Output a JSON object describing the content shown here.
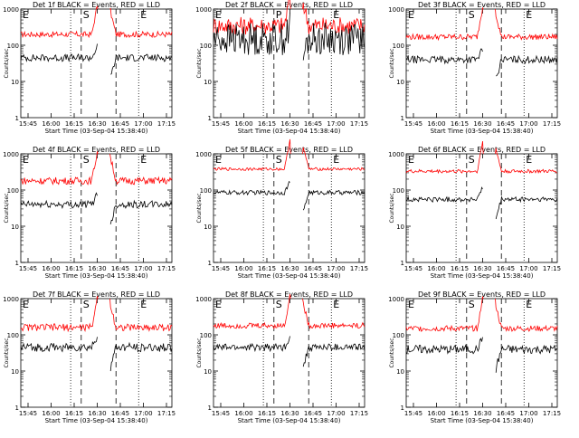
{
  "chart_data": [
    {
      "type": "line",
      "title": "Det 1f BLACK = Events, RED = LLD",
      "xlabel": "Start Time (03-Sep-04 15:38:40)",
      "ylabel": "Counts/sec",
      "yscale": "log",
      "ylim": [
        1,
        1000
      ],
      "x_ticks": [
        "15:45",
        "16:00",
        "16:15",
        "16:30",
        "16:45",
        "17:00",
        "17:15"
      ],
      "y_ticks": [
        "1",
        "10",
        "100",
        "1000"
      ],
      "markers": [
        {
          "label": "E",
          "style": "dotted"
        },
        {
          "label": "S",
          "style": "dashed"
        },
        {
          "label": "",
          "style": "dashed"
        },
        {
          "label": "E",
          "style": "dotted"
        }
      ],
      "series": [
        {
          "color": "#ff0000",
          "baseline": 200,
          "jitter": 0.08
        },
        {
          "color": "#000000",
          "baseline": 45,
          "jitter": 0.1
        }
      ]
    },
    {
      "type": "line",
      "title": "Det 2f BLACK = Events, RED = LLD",
      "xlabel": "Start Time (03-Sep-04 15:38:40)",
      "ylabel": "Counts/sec",
      "yscale": "log",
      "ylim": [
        1,
        1000
      ],
      "x_ticks": [
        "15:45",
        "16:00",
        "16:15",
        "16:30",
        "16:45",
        "17:00",
        "17:15"
      ],
      "y_ticks": [
        "1",
        "10",
        "100",
        "1000"
      ],
      "markers": [
        {
          "label": "E",
          "style": "dotted"
        },
        {
          "label": "P",
          "style": "dashed"
        },
        {
          "label": "",
          "style": "dashed"
        },
        {
          "label": "E",
          "style": "dotted"
        }
      ],
      "series": [
        {
          "color": "#ff0000",
          "baseline": 350,
          "jitter": 0.25
        },
        {
          "color": "#000000",
          "baseline": 150,
          "jitter": 0.45
        }
      ]
    },
    {
      "type": "line",
      "title": "Det 3f BLACK = Events, RED = LLD",
      "xlabel": "Start Time (03-Sep-04 15:38:40)",
      "ylabel": "Counts/sec",
      "yscale": "log",
      "ylim": [
        1,
        1000
      ],
      "x_ticks": [
        "15:45",
        "16:00",
        "16:15",
        "16:30",
        "16:45",
        "17:00",
        "17:15"
      ],
      "y_ticks": [
        "1",
        "10",
        "100",
        "1000"
      ],
      "markers": [
        {
          "label": "E",
          "style": "dotted"
        },
        {
          "label": "S",
          "style": "dashed"
        },
        {
          "label": "",
          "style": "dashed"
        },
        {
          "label": "E",
          "style": "dotted"
        }
      ],
      "series": [
        {
          "color": "#ff0000",
          "baseline": 170,
          "jitter": 0.08
        },
        {
          "color": "#000000",
          "baseline": 40,
          "jitter": 0.1
        }
      ]
    },
    {
      "type": "line",
      "title": "Det 4f BLACK = Events, RED = LLD",
      "xlabel": "Start Time (03-Sep-04 15:38:40)",
      "ylabel": "Counts/sec",
      "yscale": "log",
      "ylim": [
        1,
        1000
      ],
      "x_ticks": [
        "15:45",
        "16:00",
        "16:15",
        "16:30",
        "16:45",
        "17:00",
        "17:15"
      ],
      "y_ticks": [
        "1",
        "10",
        "100",
        "1000"
      ],
      "markers": [
        {
          "label": "E",
          "style": "dotted"
        },
        {
          "label": "S",
          "style": "dashed"
        },
        {
          "label": "",
          "style": "dashed"
        },
        {
          "label": "E",
          "style": "dotted"
        }
      ],
      "series": [
        {
          "color": "#ff0000",
          "baseline": 180,
          "jitter": 0.1
        },
        {
          "color": "#000000",
          "baseline": 40,
          "jitter": 0.1
        }
      ]
    },
    {
      "type": "line",
      "title": "Det 5f BLACK = Events, RED = LLD",
      "xlabel": "Start Time (03-Sep-04 15:38:40)",
      "ylabel": "Counts/sec",
      "yscale": "log",
      "ylim": [
        1,
        1000
      ],
      "x_ticks": [
        "15:45",
        "16:00",
        "16:15",
        "16:30",
        "16:45",
        "17:00",
        "17:15"
      ],
      "y_ticks": [
        "1",
        "10",
        "100",
        "1000"
      ],
      "markers": [
        {
          "label": "E",
          "style": "dotted"
        },
        {
          "label": "S",
          "style": "dashed"
        },
        {
          "label": "",
          "style": "dashed"
        },
        {
          "label": "E",
          "style": "dotted"
        }
      ],
      "series": [
        {
          "color": "#ff0000",
          "baseline": 380,
          "jitter": 0.04
        },
        {
          "color": "#000000",
          "baseline": 85,
          "jitter": 0.06
        }
      ]
    },
    {
      "type": "line",
      "title": "Det 6f BLACK = Events, RED = LLD",
      "xlabel": "Start Time (03-Sep-04 15:38:40)",
      "ylabel": "Counts/sec",
      "yscale": "log",
      "ylim": [
        1,
        1000
      ],
      "x_ticks": [
        "15:45",
        "16:00",
        "16:15",
        "16:30",
        "16:45",
        "17:00",
        "17:15"
      ],
      "y_ticks": [
        "1",
        "10",
        "100",
        "1000"
      ],
      "markers": [
        {
          "label": "E",
          "style": "dotted"
        },
        {
          "label": "S",
          "style": "dashed"
        },
        {
          "label": "",
          "style": "dashed"
        },
        {
          "label": "E",
          "style": "dotted"
        }
      ],
      "series": [
        {
          "color": "#ff0000",
          "baseline": 330,
          "jitter": 0.05
        },
        {
          "color": "#000000",
          "baseline": 55,
          "jitter": 0.07
        }
      ]
    },
    {
      "type": "line",
      "title": "Det 7f BLACK = Events, RED = LLD",
      "xlabel": "Start Time (03-Sep-04 15:38:40)",
      "ylabel": "Counts/sec",
      "yscale": "log",
      "ylim": [
        1,
        1000
      ],
      "x_ticks": [
        "15:45",
        "16:00",
        "16:15",
        "16:30",
        "16:45",
        "17:00",
        "17:15"
      ],
      "y_ticks": [
        "1",
        "10",
        "100",
        "1000"
      ],
      "markers": [
        {
          "label": "E",
          "style": "dotted"
        },
        {
          "label": "S",
          "style": "dashed"
        },
        {
          "label": "",
          "style": "dashed"
        },
        {
          "label": "E",
          "style": "dotted"
        }
      ],
      "series": [
        {
          "color": "#ff0000",
          "baseline": 160,
          "jitter": 0.1
        },
        {
          "color": "#000000",
          "baseline": 45,
          "jitter": 0.12
        }
      ]
    },
    {
      "type": "line",
      "title": "Det 8f BLACK = Events, RED = LLD",
      "xlabel": "Start Time (03-Sep-04 15:38:40)",
      "ylabel": "Counts/sec",
      "yscale": "log",
      "ylim": [
        1,
        1000
      ],
      "x_ticks": [
        "15:45",
        "16:00",
        "16:15",
        "16:30",
        "16:45",
        "17:00",
        "17:15"
      ],
      "y_ticks": [
        "1",
        "10",
        "100",
        "1000"
      ],
      "markers": [
        {
          "label": "E",
          "style": "dotted"
        },
        {
          "label": "S",
          "style": "dashed"
        },
        {
          "label": "",
          "style": "dashed"
        },
        {
          "label": "E",
          "style": "dotted"
        }
      ],
      "series": [
        {
          "color": "#ff0000",
          "baseline": 180,
          "jitter": 0.08
        },
        {
          "color": "#000000",
          "baseline": 45,
          "jitter": 0.1
        }
      ]
    },
    {
      "type": "line",
      "title": "Det 9f BLACK = Events, RED = LLD",
      "xlabel": "Start Time (03-Sep-04 15:38:40)",
      "ylabel": "Counts/sec",
      "yscale": "log",
      "ylim": [
        1,
        1000
      ],
      "x_ticks": [
        "15:45",
        "16:00",
        "16:15",
        "16:30",
        "16:45",
        "17:00",
        "17:15"
      ],
      "y_ticks": [
        "1",
        "10",
        "100",
        "1000"
      ],
      "markers": [
        {
          "label": "E",
          "style": "dotted"
        },
        {
          "label": "S",
          "style": "dashed"
        },
        {
          "label": "",
          "style": "dashed"
        },
        {
          "label": "E",
          "style": "dotted"
        }
      ],
      "series": [
        {
          "color": "#ff0000",
          "baseline": 150,
          "jitter": 0.08
        },
        {
          "color": "#000000",
          "baseline": 40,
          "jitter": 0.12
        }
      ]
    }
  ]
}
